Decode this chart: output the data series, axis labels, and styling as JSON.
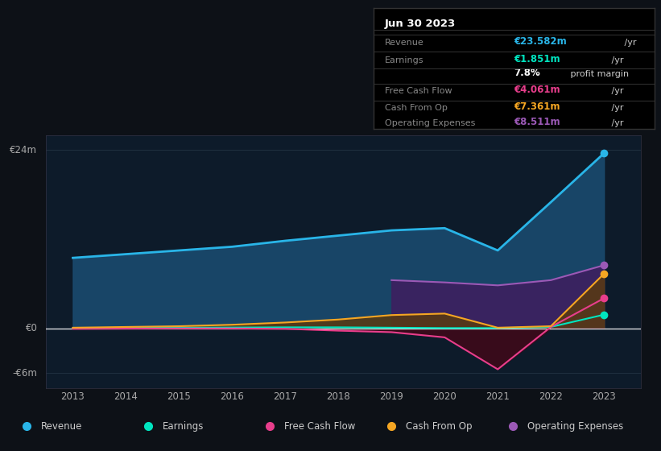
{
  "bg_color": "#0d1117",
  "plot_bg_color": "#0d1b2a",
  "ylabel_top": "€24m",
  "ylabel_zero": "€0",
  "ylabel_neg": "-€6m",
  "years": [
    2013,
    2014,
    2015,
    2016,
    2017,
    2018,
    2019,
    2020,
    2021,
    2022,
    2023
  ],
  "revenue": [
    9.5,
    10.0,
    10.5,
    11.0,
    11.8,
    12.5,
    13.2,
    13.5,
    10.5,
    17.0,
    23.582
  ],
  "earnings": [
    0.05,
    0.08,
    0.1,
    0.12,
    0.15,
    0.15,
    0.1,
    0.05,
    0.05,
    0.2,
    1.851
  ],
  "free_cash_flow": [
    -0.05,
    -0.02,
    0.0,
    0.0,
    -0.05,
    -0.3,
    -0.5,
    -1.2,
    -5.5,
    0.2,
    4.061
  ],
  "cash_from_op": [
    0.1,
    0.2,
    0.3,
    0.5,
    0.8,
    1.2,
    1.8,
    2.0,
    0.1,
    0.3,
    7.361
  ],
  "operating_expenses": [
    0.0,
    0.0,
    0.0,
    0.0,
    0.0,
    0.0,
    6.5,
    6.2,
    5.8,
    6.5,
    8.511
  ],
  "revenue_color": "#29b5e8",
  "earnings_color": "#00e5c0",
  "fcf_color": "#e83e8c",
  "cashop_color": "#f5a623",
  "opex_color": "#9b59b6",
  "info_rows": [
    {
      "label": "Revenue",
      "value": "€23.582m",
      "color": "#29b5e8",
      "suffix": " /yr",
      "extra": null
    },
    {
      "label": "Earnings",
      "value": "€1.851m",
      "color": "#00e5c0",
      "suffix": " /yr",
      "extra": null
    },
    {
      "label": "",
      "value": "7.8%",
      "color": "#ffffff",
      "suffix": " profit margin",
      "extra": null
    },
    {
      "label": "Free Cash Flow",
      "value": "€4.061m",
      "color": "#e83e8c",
      "suffix": " /yr",
      "extra": null
    },
    {
      "label": "Cash From Op",
      "value": "€7.361m",
      "color": "#f5a623",
      "suffix": " /yr",
      "extra": null
    },
    {
      "label": "Operating Expenses",
      "value": "€8.511m",
      "color": "#9b59b6",
      "suffix": " /yr",
      "extra": null
    }
  ],
  "legend_items": [
    {
      "label": "Revenue",
      "color": "#29b5e8"
    },
    {
      "label": "Earnings",
      "color": "#00e5c0"
    },
    {
      "label": "Free Cash Flow",
      "color": "#e83e8c"
    },
    {
      "label": "Cash From Op",
      "color": "#f5a623"
    },
    {
      "label": "Operating Expenses",
      "color": "#9b59b6"
    }
  ]
}
